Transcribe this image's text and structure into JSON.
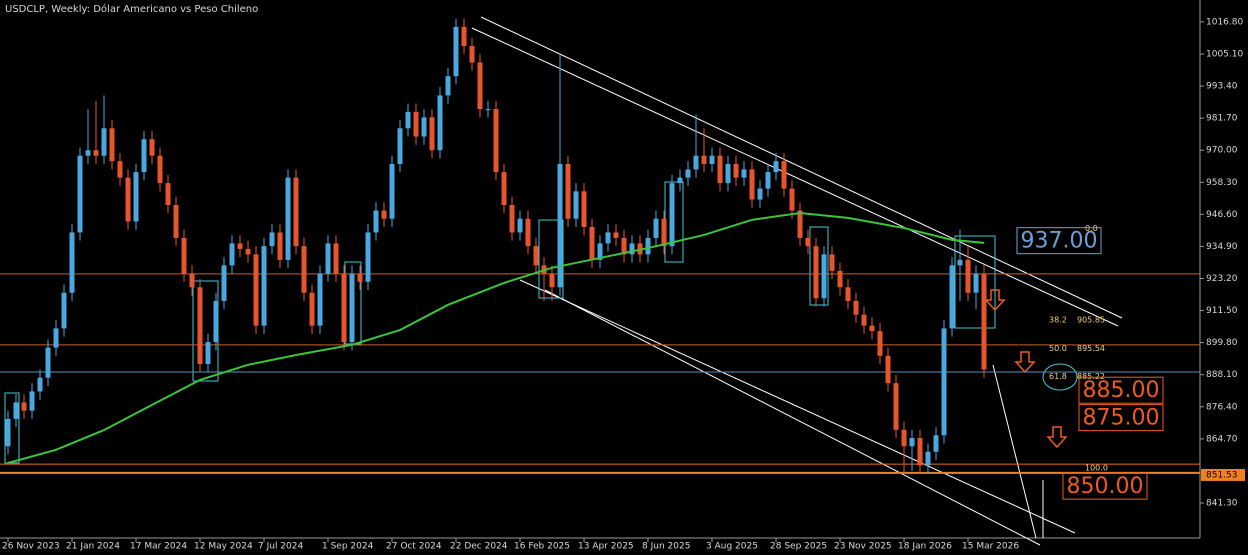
{
  "chart_data": {
    "type": "candlestick",
    "title": "USDCLP, Weekly:  Dólar Americano vs Peso Chileno",
    "categories": [
      "26 Nov 2023",
      null,
      null,
      null,
      null,
      null,
      null,
      null,
      "21 Jan 2024",
      null,
      null,
      null,
      null,
      null,
      null,
      null,
      "17 Mar 2024",
      null,
      null,
      null,
      null,
      null,
      null,
      null,
      "12 May 2024",
      null,
      null,
      null,
      null,
      null,
      null,
      null,
      "7 Jul 2024",
      null,
      null,
      null,
      null,
      null,
      null,
      null,
      "1 Sep 2024",
      null,
      null,
      null,
      null,
      null,
      null,
      null,
      "27 Oct 2024",
      null,
      null,
      null,
      null,
      null,
      null,
      null,
      "22 Dec 2024",
      null,
      null,
      null,
      null,
      null,
      null,
      null,
      "16 Feb 2025",
      null,
      null,
      null,
      null,
      null,
      null,
      null,
      "13 Apr 2025",
      null,
      null,
      null,
      null,
      null,
      null,
      null,
      "8 Jun 2025",
      null,
      null,
      null,
      null,
      null,
      null,
      null,
      "3 Aug 2025",
      null,
      null,
      null,
      null,
      null,
      null,
      null,
      "28 Sep 2025",
      null,
      null,
      null,
      null,
      null,
      null,
      null,
      "23 Nov 2025",
      null,
      null,
      null,
      null,
      null,
      null,
      null,
      "18 Jan 2026",
      null,
      null,
      null,
      null,
      null,
      null,
      null,
      "15 Mar 2026",
      null,
      null
    ],
    "open": [
      862,
      872,
      878,
      875,
      882,
      887,
      898,
      905,
      918,
      940,
      968,
      970,
      968,
      978,
      966,
      960,
      944,
      962,
      974,
      968,
      958,
      950,
      938,
      925,
      920,
      892,
      900,
      915,
      928,
      936,
      934,
      932,
      906,
      935,
      940,
      930,
      960,
      935,
      918,
      906,
      925,
      936,
      925,
      900,
      925,
      922,
      940,
      948,
      945,
      965,
      978,
      984,
      975,
      982,
      970,
      990,
      997,
      1015,
      1008,
      1002,
      985,
      985,
      962,
      950,
      940,
      945,
      935,
      928,
      925,
      920,
      965,
      945,
      955,
      942,
      930,
      936,
      940,
      938,
      932,
      936,
      932,
      938,
      945,
      935,
      958,
      960,
      963,
      968,
      965,
      968,
      958,
      965,
      960,
      963,
      952,
      956,
      962,
      966,
      956,
      948,
      938,
      935,
      916,
      932,
      926,
      920,
      915,
      910,
      906,
      904,
      895,
      885,
      868,
      862,
      865,
      855,
      860,
      866,
      905,
      928,
      930,
      918,
      925
    ],
    "high": [
      875,
      881,
      881,
      885,
      890,
      901,
      908,
      921,
      943,
      971,
      985,
      988,
      990,
      981,
      969,
      963,
      965,
      977,
      977,
      971,
      961,
      953,
      941,
      928,
      923,
      903,
      918,
      931,
      939,
      939,
      937,
      935,
      938,
      943,
      943,
      963,
      963,
      938,
      921,
      928,
      939,
      939,
      928,
      928,
      928,
      943,
      951,
      951,
      968,
      981,
      987,
      987,
      985,
      985,
      993,
      1000,
      1018,
      1018,
      1011,
      1005,
      988,
      988,
      965,
      953,
      948,
      948,
      938,
      931,
      928,
      1005,
      968,
      958,
      958,
      945,
      939,
      943,
      943,
      941,
      939,
      939,
      941,
      948,
      948,
      961,
      963,
      966,
      983,
      978,
      971,
      971,
      968,
      968,
      966,
      966,
      959,
      965,
      969,
      969,
      959,
      951,
      941,
      938,
      935,
      935,
      929,
      923,
      918,
      913,
      909,
      907,
      898,
      888,
      871,
      868,
      868,
      863,
      869,
      908,
      931,
      941,
      935,
      928,
      928
    ],
    "low": [
      859,
      869,
      872,
      872,
      879,
      884,
      895,
      902,
      915,
      937,
      965,
      965,
      965,
      963,
      957,
      941,
      941,
      959,
      965,
      955,
      947,
      935,
      922,
      917,
      889,
      889,
      897,
      912,
      925,
      931,
      929,
      903,
      903,
      932,
      927,
      927,
      932,
      915,
      903,
      903,
      922,
      922,
      897,
      897,
      919,
      919,
      937,
      942,
      942,
      962,
      975,
      972,
      972,
      967,
      967,
      987,
      994,
      1005,
      999,
      982,
      982,
      959,
      947,
      937,
      937,
      932,
      925,
      915,
      915,
      917,
      942,
      942,
      939,
      927,
      927,
      933,
      935,
      929,
      929,
      929,
      929,
      935,
      932,
      932,
      955,
      957,
      960,
      962,
      962,
      955,
      955,
      957,
      957,
      949,
      949,
      953,
      959,
      953,
      945,
      935,
      932,
      913,
      913,
      923,
      917,
      912,
      907,
      903,
      901,
      892,
      882,
      865,
      852,
      853,
      852,
      852,
      857,
      863,
      902,
      915,
      915,
      912,
      887
    ],
    "close": [
      872,
      878,
      875,
      882,
      887,
      898,
      905,
      918,
      940,
      968,
      970,
      968,
      978,
      966,
      960,
      944,
      962,
      974,
      968,
      958,
      950,
      938,
      925,
      920,
      892,
      900,
      915,
      928,
      936,
      934,
      932,
      906,
      935,
      940,
      930,
      960,
      935,
      918,
      906,
      925,
      936,
      925,
      900,
      925,
      922,
      940,
      948,
      945,
      965,
      978,
      984,
      975,
      982,
      970,
      990,
      997,
      1015,
      1008,
      1002,
      985,
      985,
      962,
      950,
      940,
      945,
      935,
      928,
      925,
      920,
      965,
      945,
      955,
      942,
      930,
      936,
      940,
      938,
      932,
      936,
      932,
      938,
      945,
      935,
      958,
      960,
      963,
      968,
      965,
      968,
      958,
      965,
      960,
      963,
      952,
      956,
      962,
      966,
      956,
      948,
      938,
      935,
      916,
      932,
      926,
      920,
      915,
      910,
      906,
      904,
      895,
      885,
      868,
      862,
      865,
      855,
      860,
      866,
      905,
      928,
      930,
      918,
      925,
      890
    ],
    "up_color": "#4aa8e0",
    "down_color": "#e8542c",
    "ylim": [
      827.8,
      1024.8
    ],
    "yticks": [
      {
        "value": 1016.8,
        "label": "1016.80"
      },
      {
        "value": 1005.1,
        "label": "1005.10"
      },
      {
        "value": 993.4,
        "label": "993.40"
      },
      {
        "value": 981.7,
        "label": "981.70"
      },
      {
        "value": 970,
        "label": "970.00"
      },
      {
        "value": 958.3,
        "label": "958.30"
      },
      {
        "value": 946.6,
        "label": "946.60"
      },
      {
        "value": 934.9,
        "label": "934.90"
      },
      {
        "value": 923.2,
        "label": "923.20"
      },
      {
        "value": 911.5,
        "label": "911.50"
      },
      {
        "value": 899.8,
        "label": "899.80"
      },
      {
        "value": 888.1,
        "label": "888.10"
      },
      {
        "value": 876.4,
        "label": "876.40"
      },
      {
        "value": 864.7,
        "label": "864.70"
      },
      {
        "value": 841.3,
        "label": "841.30"
      }
    ],
    "ma": {
      "color": "#3cc43c",
      "index": [
        0,
        6,
        12,
        18,
        24,
        30,
        36,
        43,
        49,
        55,
        62,
        68,
        74,
        80,
        87,
        93,
        99,
        105,
        112,
        118,
        122
      ],
      "values": [
        855.9,
        860.7,
        867.9,
        877.1,
        886.2,
        891.7,
        895.3,
        899.0,
        904.4,
        913.6,
        921.6,
        927.1,
        930.7,
        934.3,
        939.1,
        944.6,
        947.1,
        945.3,
        941.6,
        937.3,
        936.2
      ]
    },
    "hlines": [
      {
        "value": 924.9,
        "color": "#c8602c"
      },
      {
        "value": 899.0,
        "color": "#c8602c"
      },
      {
        "value": 889.1,
        "color": "#5a8fb8"
      },
      {
        "value": 855.5,
        "color": "#e07020"
      },
      {
        "value": 852.3,
        "color": "#f08020"
      }
    ],
    "fib": [
      {
        "level": {
          "value": 0,
          "label": "0.0"
        }
      },
      {
        "level": 38.2,
        "price": 905.85
      },
      {
        "level": {
          "value": 50,
          "label": "50.0"
        },
        "price": 895.54
      },
      {
        "level": 61.8,
        "price": 885.22
      },
      {
        "level": {
          "value": 100,
          "label": "100.0"
        }
      }
    ],
    "boxes": [
      {
        "value": {
          "value": 937,
          "label": "937.00"
        },
        "color": "#6aa0d8"
      },
      {
        "value": {
          "value": 885,
          "label": "885.00"
        },
        "color": "#f05a1e"
      },
      {
        "value": {
          "value": 875,
          "label": "875.00"
        },
        "color": "#f05a1e"
      },
      {
        "value": {
          "value": 850,
          "label": "850.00"
        },
        "color": "#f05a1e"
      }
    ],
    "price_label": 851.53
  }
}
